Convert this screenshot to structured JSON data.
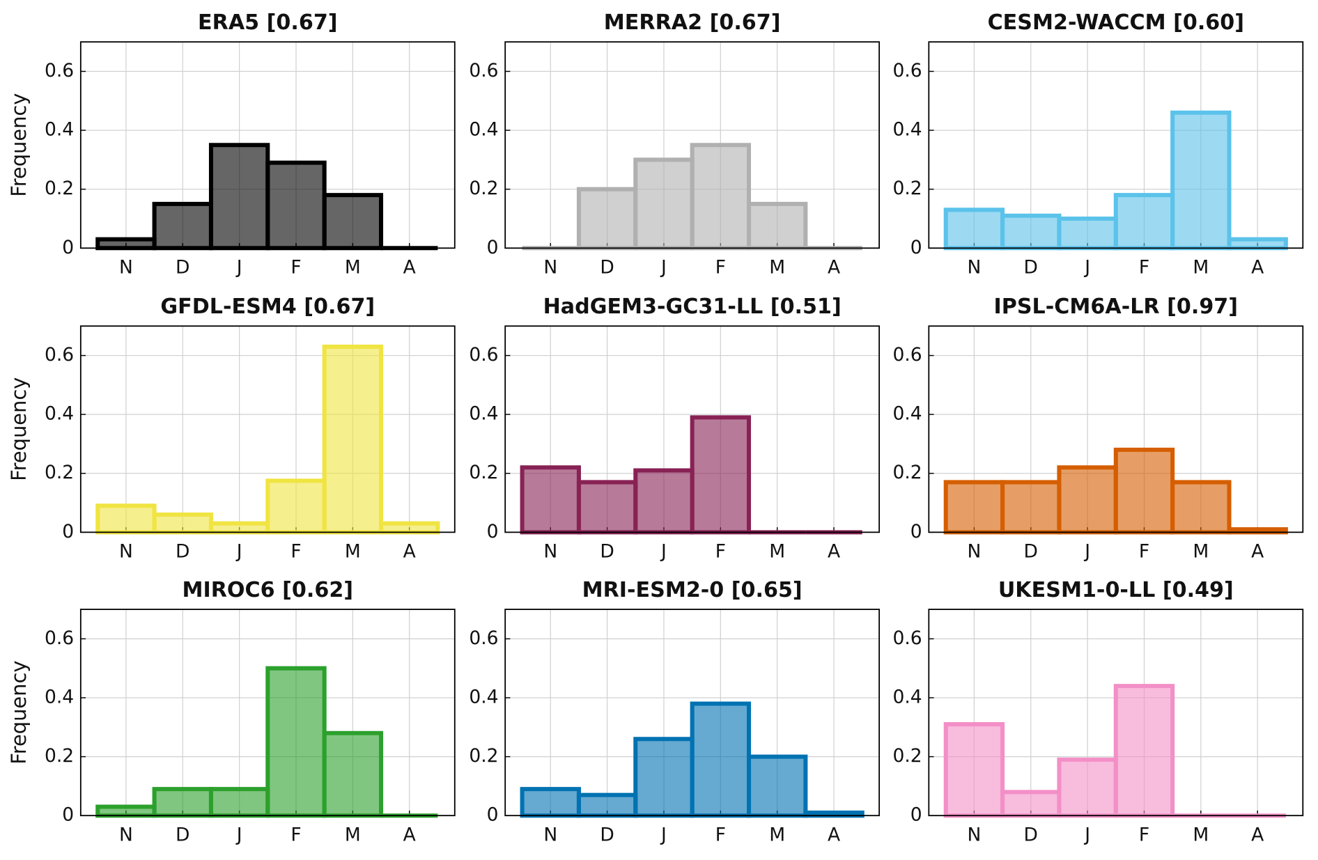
{
  "chart_data": [
    {
      "type": "bar",
      "title": "ERA5 [0.67]",
      "ylabel": "Frequency",
      "categories": [
        "N",
        "D",
        "J",
        "F",
        "M",
        "A"
      ],
      "values": [
        0.03,
        0.15,
        0.35,
        0.29,
        0.18,
        0.0
      ],
      "color": "#000000",
      "ylim": [
        0,
        0.7
      ],
      "yticks": [
        0,
        0.2,
        0.4,
        0.6
      ],
      "grid": true
    },
    {
      "type": "bar",
      "title": "MERRA2 [0.67]",
      "categories": [
        "N",
        "D",
        "J",
        "F",
        "M",
        "A"
      ],
      "values": [
        0.0,
        0.2,
        0.3,
        0.35,
        0.15,
        0.0
      ],
      "color": "#b0b0b0",
      "ylim": [
        0,
        0.7
      ],
      "yticks": [
        0,
        0.2,
        0.4,
        0.6
      ],
      "grid": true
    },
    {
      "type": "bar",
      "title": "CESM2-WACCM [0.60]",
      "categories": [
        "N",
        "D",
        "J",
        "F",
        "M",
        "A"
      ],
      "values": [
        0.13,
        0.11,
        0.1,
        0.18,
        0.46,
        0.03
      ],
      "color": "#5bc2ea",
      "ylim": [
        0,
        0.7
      ],
      "yticks": [
        0,
        0.2,
        0.4,
        0.6
      ],
      "grid": true
    },
    {
      "type": "bar",
      "title": "GFDL-ESM4 [0.67]",
      "ylabel": "Frequency",
      "categories": [
        "N",
        "D",
        "J",
        "F",
        "M",
        "A"
      ],
      "values": [
        0.09,
        0.06,
        0.03,
        0.175,
        0.63,
        0.03
      ],
      "color": "#f0e442",
      "ylim": [
        0,
        0.7
      ],
      "yticks": [
        0,
        0.2,
        0.4,
        0.6
      ],
      "grid": true
    },
    {
      "type": "bar",
      "title": "HadGEM3-GC31-LL [0.51]",
      "categories": [
        "N",
        "D",
        "J",
        "F",
        "M",
        "A"
      ],
      "values": [
        0.22,
        0.17,
        0.21,
        0.39,
        0.0,
        0.0
      ],
      "color": "#882255",
      "ylim": [
        0,
        0.7
      ],
      "yticks": [
        0,
        0.2,
        0.4,
        0.6
      ],
      "grid": true
    },
    {
      "type": "bar",
      "title": "IPSL-CM6A-LR [0.97]",
      "categories": [
        "N",
        "D",
        "J",
        "F",
        "M",
        "A"
      ],
      "values": [
        0.17,
        0.17,
        0.22,
        0.28,
        0.17,
        0.01
      ],
      "color": "#d55e00",
      "ylim": [
        0,
        0.7
      ],
      "yticks": [
        0,
        0.2,
        0.4,
        0.6
      ],
      "grid": true
    },
    {
      "type": "bar",
      "title": "MIROC6 [0.62]",
      "ylabel": "Frequency",
      "categories": [
        "N",
        "D",
        "J",
        "F",
        "M",
        "A"
      ],
      "values": [
        0.03,
        0.09,
        0.09,
        0.5,
        0.28,
        0.0
      ],
      "color": "#2ca02c",
      "ylim": [
        0,
        0.7
      ],
      "yticks": [
        0,
        0.2,
        0.4,
        0.6
      ],
      "grid": true
    },
    {
      "type": "bar",
      "title": "MRI-ESM2-0 [0.65]",
      "categories": [
        "N",
        "D",
        "J",
        "F",
        "M",
        "A"
      ],
      "values": [
        0.09,
        0.07,
        0.26,
        0.38,
        0.2,
        0.01
      ],
      "color": "#0072b2",
      "ylim": [
        0,
        0.7
      ],
      "yticks": [
        0,
        0.2,
        0.4,
        0.6
      ],
      "grid": true
    },
    {
      "type": "bar",
      "title": "UKESM1-0-LL [0.49]",
      "categories": [
        "N",
        "D",
        "J",
        "F",
        "M",
        "A"
      ],
      "values": [
        0.31,
        0.08,
        0.19,
        0.44,
        0.0,
        0.0
      ],
      "color": "#f38fc7",
      "ylim": [
        0,
        0.7
      ],
      "yticks": [
        0,
        0.2,
        0.4,
        0.6
      ],
      "grid": true
    }
  ]
}
